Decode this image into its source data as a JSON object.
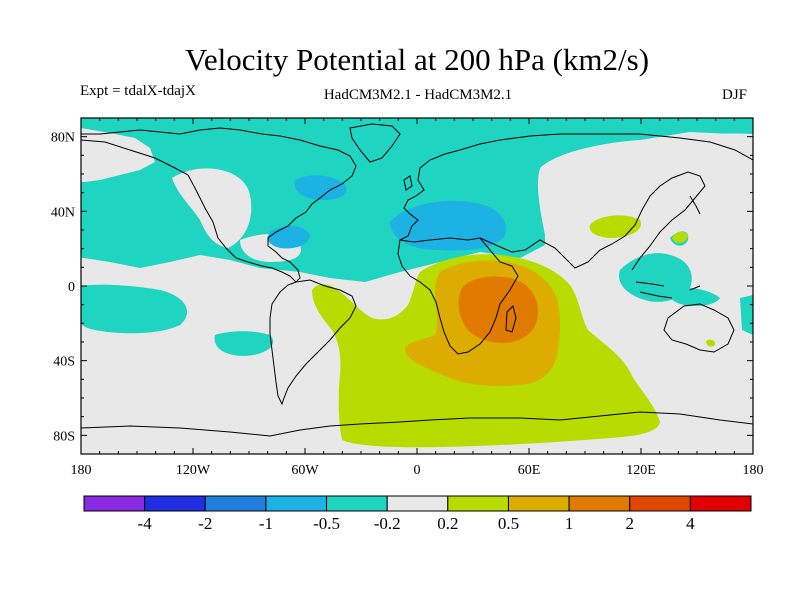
{
  "header": {
    "title": "Velocity Potential at 200 hPa (km2/s)",
    "experiment": "Expt = tdalX-tdajX",
    "model": "HadCM3M2.1 - HadCM3M2.1",
    "season": "DJF"
  },
  "axes": {
    "lat_labels": [
      {
        "lat": 80,
        "label": "80N"
      },
      {
        "lat": 40,
        "label": "40N"
      },
      {
        "lat": 0,
        "label": "0"
      },
      {
        "lat": -40,
        "label": "40S"
      },
      {
        "lat": -80,
        "label": "80S"
      }
    ],
    "lon_labels": [
      {
        "lon": -180,
        "label": "180"
      },
      {
        "lon": -120,
        "label": "120W"
      },
      {
        "lon": -60,
        "label": "60W"
      },
      {
        "lon": 0,
        "label": "0"
      },
      {
        "lon": 60,
        "label": "60E"
      },
      {
        "lon": 120,
        "label": "120E"
      },
      {
        "lon": 180,
        "label": "180"
      }
    ]
  },
  "colorbar": {
    "colors": [
      "#8a2be2",
      "#1f2ee0",
      "#1e7fdc",
      "#1cb2e4",
      "#1fd4c0",
      "#e8e8e8",
      "#b8db00",
      "#dcac00",
      "#e07a00",
      "#e04800",
      "#e00000"
    ],
    "labels": [
      "-4",
      "-2",
      "-1",
      "-0.5",
      "-0.2",
      "0.2",
      "0.5",
      "1",
      "2",
      "4"
    ]
  },
  "palette": {
    "neutral": "#e8e8e8",
    "neg_weak": "#1fd4c0",
    "neg_mid": "#1cb2e4",
    "pos_weak": "#b8db00",
    "pos_mid": "#dcac00",
    "pos_strong": "#e07a00"
  }
}
